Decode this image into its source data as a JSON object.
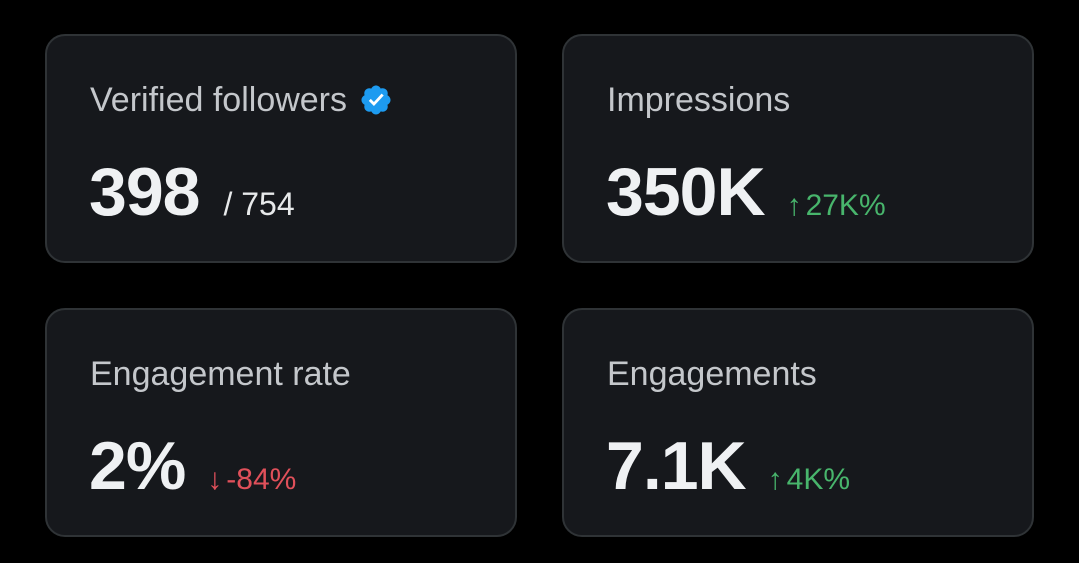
{
  "colors": {
    "background": "#000000",
    "card_bg": "#16181c",
    "card_border": "#2f3336",
    "positive": "#48b56c",
    "negative": "#e0505a",
    "verified": "#1d9bf0"
  },
  "cards": [
    {
      "title": "Verified followers",
      "icon": "verified-badge-icon",
      "value": "398",
      "total": "/ 754"
    },
    {
      "title": "Impressions",
      "value": "350K",
      "delta": {
        "direction": "up",
        "arrow": "↑",
        "text": "27K%"
      }
    },
    {
      "title": "Engagement rate",
      "value": "2%",
      "delta": {
        "direction": "down",
        "arrow": "↓",
        "text": "-84%"
      }
    },
    {
      "title": "Engagements",
      "value": "7.1K",
      "delta": {
        "direction": "up",
        "arrow": "↑",
        "text": "4K%"
      }
    }
  ]
}
